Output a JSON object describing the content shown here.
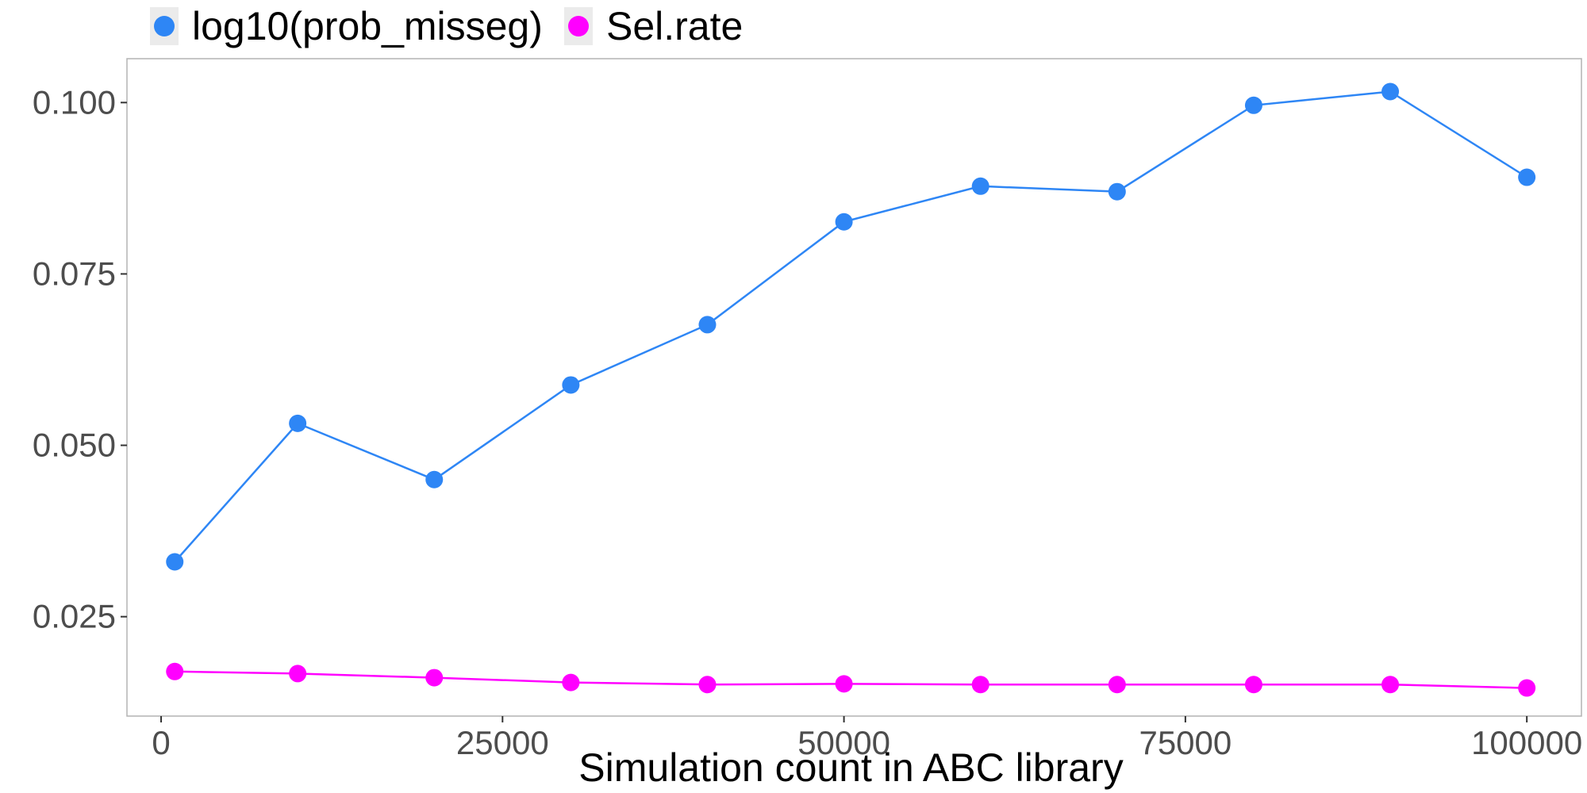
{
  "chart_data": {
    "type": "line",
    "title": "",
    "xlabel": "Simulation count in ABC library",
    "ylabel": "",
    "xlim": [
      -2500,
      104000
    ],
    "ylim": [
      0.0105,
      0.1064
    ],
    "x_ticks": [
      0,
      25000,
      50000,
      75000,
      100000
    ],
    "x_tick_labels": [
      "0",
      "25000",
      "50000",
      "75000",
      "100000"
    ],
    "y_ticks": [
      0.025,
      0.05,
      0.075,
      0.1
    ],
    "y_tick_labels": [
      "0.025",
      "0.050",
      "0.075",
      "0.100"
    ],
    "grid": false,
    "legend_position": "top-left",
    "x": [
      1000,
      10000,
      20000,
      30000,
      40000,
      50000,
      60000,
      70000,
      80000,
      90000,
      100000
    ],
    "series": [
      {
        "name": "log10(prob_misseg)",
        "color": "#2e86f5",
        "values": [
          0.033,
          0.0532,
          0.045,
          0.0588,
          0.0676,
          0.0826,
          0.0878,
          0.087,
          0.0996,
          0.1016,
          0.0891
        ]
      },
      {
        "name": "Sel.rate",
        "color": "#ff00ff",
        "values": [
          0.017,
          0.0167,
          0.0161,
          0.0154,
          0.0151,
          0.0152,
          0.0151,
          0.0151,
          0.0151,
          0.0151,
          0.0146
        ]
      }
    ]
  }
}
